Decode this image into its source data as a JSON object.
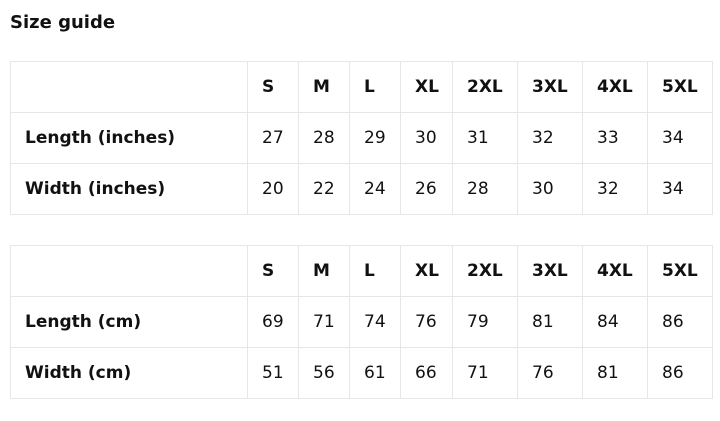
{
  "title": "Size guide",
  "sizes": [
    "S",
    "M",
    "L",
    "XL",
    "2XL",
    "3XL",
    "4XL",
    "5XL"
  ],
  "tables": [
    {
      "rows": [
        {
          "label": "Length (inches)",
          "values": [
            "27",
            "28",
            "29",
            "30",
            "31",
            "32",
            "33",
            "34"
          ]
        },
        {
          "label": "Width (inches)",
          "values": [
            "20",
            "22",
            "24",
            "26",
            "28",
            "30",
            "32",
            "34"
          ]
        }
      ]
    },
    {
      "rows": [
        {
          "label": "Length (cm)",
          "values": [
            "69",
            "71",
            "74",
            "76",
            "79",
            "81",
            "84",
            "86"
          ]
        },
        {
          "label": "Width (cm)",
          "values": [
            "51",
            "56",
            "61",
            "66",
            "71",
            "76",
            "81",
            "86"
          ]
        }
      ]
    }
  ]
}
